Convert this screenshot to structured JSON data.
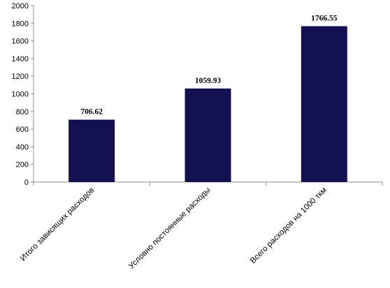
{
  "chart_data": {
    "type": "bar",
    "title": "",
    "xlabel": "",
    "ylabel": "",
    "categories": [
      "Итого зависящих расходов",
      "Условно постоянные расходы",
      "Всего расходов на 1000 ткм"
    ],
    "values": [
      706.62,
      1059.93,
      1766.55
    ],
    "data_labels": [
      "706.62",
      "1059.93",
      "1766.55"
    ],
    "ylim": [
      0,
      2000
    ],
    "yticks": [
      0,
      200,
      400,
      600,
      800,
      1000,
      1200,
      1400,
      1600,
      1800,
      2000
    ],
    "grid": false,
    "legend": "none",
    "bar_color": "#14104f"
  }
}
